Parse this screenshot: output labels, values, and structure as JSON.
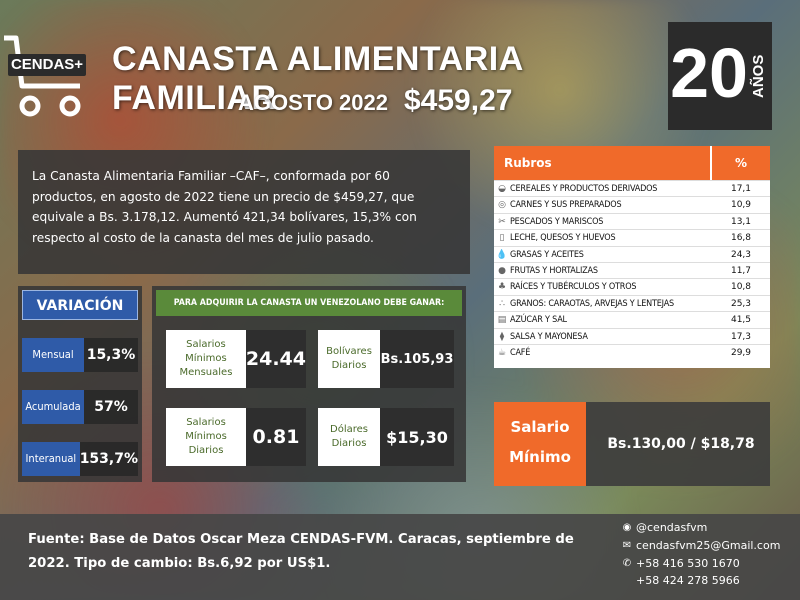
{
  "header": {
    "logo_text": "CENDAS+",
    "title": "CANASTA ALIMENTARIA FAMILIAR",
    "period": "AGOSTO 2022",
    "price": "$459,27",
    "anniversary_number": "20",
    "anniversary_word": "AÑOS"
  },
  "description": "La Canasta Alimentaria Familiar –CAF–, conformada por 60 productos, en agosto de 2022 tiene un precio de $459,27, que equivale a Bs. 3.178,12. Aumentó 421,34 bolívares, 15,3% con respecto al costo de la canasta del mes de julio pasado.",
  "rubros": {
    "header_name": "Rubros",
    "header_pct": "%",
    "rows": [
      {
        "name": "CEREALES Y PRODUCTOS DERIVADOS",
        "pct": "17,1",
        "icon": "bread-icon"
      },
      {
        "name": "CARNES Y SUS PREPARADOS",
        "pct": "10,9",
        "icon": "meat-icon"
      },
      {
        "name": "PESCADOS Y MARISCOS",
        "pct": "13,1",
        "icon": "fish-icon"
      },
      {
        "name": "LECHE, QUESOS Y HUEVOS",
        "pct": "16,8",
        "icon": "milk-icon"
      },
      {
        "name": "GRASAS Y ACEITES",
        "pct": "24,3",
        "icon": "oil-icon"
      },
      {
        "name": "FRUTAS Y HORTALIZAS",
        "pct": "11,7",
        "icon": "fruit-icon"
      },
      {
        "name": "RAÍCES Y TUBÉRCULOS Y OTROS",
        "pct": "10,8",
        "icon": "root-icon"
      },
      {
        "name": "GRANOS: CARAOTAS, ARVEJAS Y LENTEJAS",
        "pct": "25,3",
        "icon": "grain-icon"
      },
      {
        "name": "AZÚCAR Y SAL",
        "pct": "41,5",
        "icon": "sugar-icon"
      },
      {
        "name": "SALSA Y MAYONESA",
        "pct": "17,3",
        "icon": "sauce-icon"
      },
      {
        "name": "CAFÉ",
        "pct": "29,9",
        "icon": "coffee-icon"
      }
    ]
  },
  "variacion": {
    "title": "VARIACIÓN",
    "rows": [
      {
        "label": "Mensual",
        "value": "15,3%"
      },
      {
        "label": "Acumulada",
        "value": "57%"
      },
      {
        "label": "Interanual",
        "value": "153,7%"
      }
    ]
  },
  "adquirir": {
    "title": "PARA ADQUIRIR LA CANASTA UN VENEZOLANO DEBE GANAR:",
    "salarios_mensuales_label": "Salarios Mínimos Mensuales",
    "salarios_mensuales_value": "24.44",
    "bolivares_label": "Bolívares Diarios",
    "bolivares_value": "Bs.105,93",
    "salarios_diarios_label": "Salarios Mínimos Diarios",
    "salarios_diarios_value": "0.81",
    "dolares_label": "Dólares Diarios",
    "dolares_value": "$15,30"
  },
  "salario_minimo": {
    "label": "Salario Mínimo",
    "value": "Bs.130,00 / $18,78"
  },
  "footer": {
    "fuente": "Fuente:  Base de Datos Oscar Meza CENDAS-FVM. Caracas, septiembre de 2022.  Tipo de cambio: Bs.6,92 por US$1.",
    "instagram": "@cendasfvm",
    "email": "cendasfvm25@Gmail.com",
    "phone1": "+58 416 530 1670",
    "phone2": "+58 424 278 5966"
  },
  "colors": {
    "orange": "#f06a2a",
    "blue": "#2f5ba8",
    "green": "#5a8a3a",
    "dark": "#2b2b2b"
  }
}
